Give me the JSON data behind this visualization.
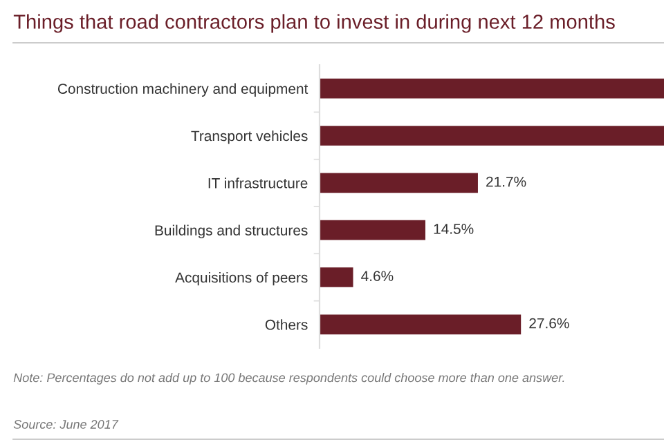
{
  "chart_data": {
    "type": "bar",
    "orientation": "horizontal",
    "title": "Things that road contractors plan to invest in during next 12 months",
    "categories": [
      "Construction machinery and equipment",
      "Transport vehicles",
      "IT infrastructure",
      "Buildings and structures",
      "Acquisitions of peers",
      "Others"
    ],
    "values": [
      47.2,
      47.2,
      21.7,
      14.5,
      4.6,
      27.6
    ],
    "value_labels": [
      null,
      null,
      "21.7%",
      "14.5%",
      "4.6%",
      "27.6%"
    ],
    "color": "#6a1e28",
    "xlim": [
      0,
      47.2
    ],
    "tick_labels": "y",
    "grid": false,
    "legend": false,
    "annotations": [
      "Note: Percentages do not add up to 100 because respondents could choose more than one answer.",
      "Source: June 2017"
    ]
  }
}
